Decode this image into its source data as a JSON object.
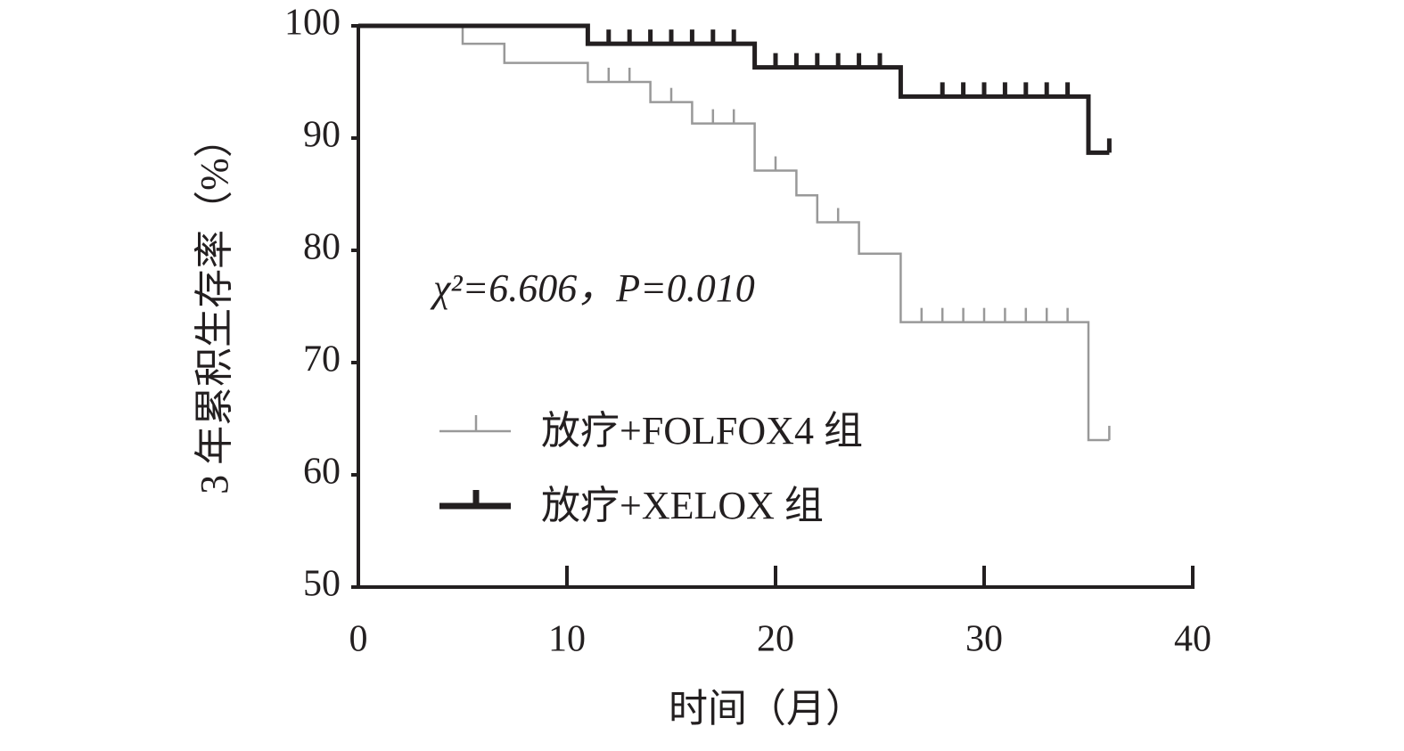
{
  "chart_data": {
    "type": "km",
    "xlabel": "时间（月）",
    "ylabel": "3 年累积生存率（%）",
    "annotation": "χ²=6.606，P=0.010",
    "xlim": [
      0,
      40
    ],
    "xticks": [
      0,
      10,
      20,
      30,
      40
    ],
    "ylim": [
      50,
      100
    ],
    "yticks": [
      50,
      60,
      70,
      80,
      90,
      100
    ],
    "series": [
      {
        "name": "放疗+FOLFOX4 组",
        "color": "#999999",
        "x": [
          0,
          5,
          7,
          11,
          14,
          16,
          19,
          21,
          22,
          24,
          26,
          35,
          36
        ],
        "values": [
          100,
          98.4,
          96.7,
          95,
          93.2,
          91.3,
          87.1,
          84.9,
          82.5,
          79.7,
          73.6,
          63.1,
          63.1
        ],
        "censor_x": [
          12,
          13,
          15,
          17,
          18,
          20,
          23,
          27,
          28,
          29,
          30,
          31,
          32,
          33,
          34,
          36
        ],
        "censor_values": [
          95,
          95,
          93.2,
          91.3,
          91.3,
          87.1,
          82.5,
          73.6,
          73.6,
          73.6,
          73.6,
          73.6,
          73.6,
          73.6,
          73.6,
          63.1
        ]
      },
      {
        "name": "放疗+XELOX 组",
        "color": "#231f20",
        "x": [
          0,
          11,
          19,
          26,
          35,
          36
        ],
        "values": [
          100,
          98.4,
          96.3,
          93.7,
          88.7,
          88.7
        ],
        "censor_x": [
          12,
          13,
          14,
          15,
          16,
          17,
          18,
          20,
          21,
          22,
          23,
          24,
          25,
          28,
          29,
          30,
          31,
          32,
          33,
          34,
          36
        ],
        "censor_values": [
          98.4,
          98.4,
          98.4,
          98.4,
          98.4,
          98.4,
          98.4,
          96.3,
          96.3,
          96.3,
          96.3,
          96.3,
          96.3,
          93.7,
          93.7,
          93.7,
          93.7,
          93.7,
          93.7,
          93.7,
          88.7
        ]
      }
    ]
  }
}
